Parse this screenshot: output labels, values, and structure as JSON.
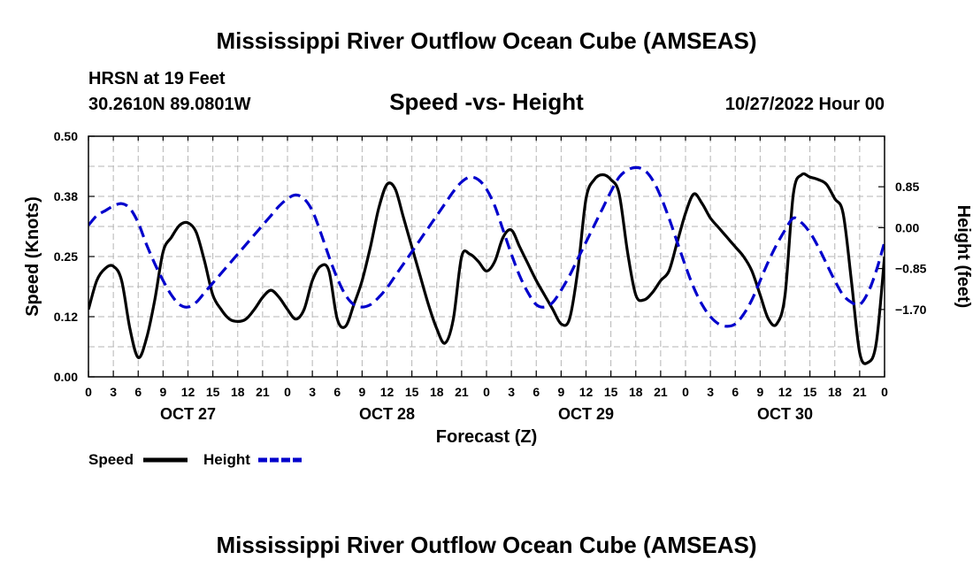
{
  "chart_data": {
    "type": "line",
    "title": "Mississippi River Outflow Ocean Cube (AMSEAS)",
    "station": "HRSN at 19 Feet",
    "location": "30.2610N  89.0801W",
    "subtitle": "Speed -vs- Height",
    "run": "10/27/2022 Hour 00",
    "footer_title": "Mississippi River Outflow Ocean Cube (AMSEAS)",
    "xlabel": "Forecast (Z)",
    "ylabel_left": "Speed (Knots)",
    "ylabel_right": "Height (feet)",
    "x_range_hours": [
      0,
      96
    ],
    "ylim_left": [
      0,
      0.5
    ],
    "ylim_right": [
      -3.1,
      1.9
    ],
    "left_ticks": [
      "0.00",
      "0.12",
      "0.25",
      "0.38",
      "0.50"
    ],
    "left_tick_values": [
      0,
      0.125,
      0.25,
      0.375,
      0.5
    ],
    "right_ticks": [
      "0.85",
      "0.00",
      "−0.85",
      "−1.70"
    ],
    "right_tick_values": [
      0.85,
      0.0,
      -0.85,
      -1.7
    ],
    "x_ticks": [
      "0",
      "3",
      "6",
      "9",
      "12",
      "15",
      "18",
      "21",
      "0",
      "3",
      "6",
      "9",
      "12",
      "15",
      "18",
      "21",
      "0",
      "3",
      "6",
      "9",
      "12",
      "15",
      "18",
      "21",
      "0",
      "3",
      "6",
      "9",
      "12",
      "15",
      "18",
      "21",
      "0"
    ],
    "day_labels": [
      "OCT 27",
      "OCT 28",
      "OCT 29",
      "OCT 30"
    ],
    "grid": true,
    "legend": "bottom-left",
    "series": [
      {
        "name": "Speed",
        "color": "#000000",
        "dash": "solid",
        "axis": "left",
        "x": [
          0,
          1,
          2,
          3,
          4,
          5,
          6,
          7,
          8,
          9,
          10,
          11,
          12,
          13,
          14,
          15,
          16,
          17,
          18,
          19,
          20,
          21,
          22,
          23,
          24,
          25,
          26,
          27,
          28,
          29,
          30,
          31,
          32,
          33,
          34,
          35,
          36,
          37,
          38,
          39,
          40,
          41,
          42,
          43,
          44,
          45,
          46,
          47,
          48,
          49,
          50,
          51,
          52,
          53,
          54,
          55,
          56,
          57,
          58,
          59,
          60,
          61,
          62,
          63,
          64,
          65,
          66,
          67,
          68,
          69,
          70,
          71,
          72,
          73,
          74,
          75,
          76,
          77,
          78,
          79,
          80,
          81,
          82,
          83,
          84,
          85,
          86,
          87,
          88,
          89,
          90,
          91,
          92,
          93,
          94,
          95,
          96
        ],
        "values": [
          0.14,
          0.2,
          0.225,
          0.23,
          0.2,
          0.1,
          0.04,
          0.08,
          0.16,
          0.26,
          0.29,
          0.315,
          0.32,
          0.3,
          0.24,
          0.17,
          0.14,
          0.12,
          0.115,
          0.12,
          0.14,
          0.165,
          0.18,
          0.165,
          0.14,
          0.12,
          0.14,
          0.2,
          0.23,
          0.22,
          0.12,
          0.105,
          0.15,
          0.2,
          0.27,
          0.35,
          0.4,
          0.39,
          0.33,
          0.27,
          0.21,
          0.15,
          0.1,
          0.07,
          0.12,
          0.25,
          0.255,
          0.24,
          0.22,
          0.24,
          0.29,
          0.305,
          0.27,
          0.235,
          0.2,
          0.17,
          0.14,
          0.11,
          0.12,
          0.22,
          0.37,
          0.41,
          0.42,
          0.41,
          0.38,
          0.26,
          0.17,
          0.16,
          0.175,
          0.2,
          0.22,
          0.28,
          0.34,
          0.38,
          0.36,
          0.33,
          0.31,
          0.29,
          0.27,
          0.25,
          0.22,
          0.17,
          0.12,
          0.11,
          0.17,
          0.38,
          0.42,
          0.415,
          0.41,
          0.4,
          0.37,
          0.34,
          0.2,
          0.05,
          0.03,
          0.07,
          0.25
        ]
      },
      {
        "name": "Height",
        "color": "#0000cc",
        "dash": "dashed",
        "axis": "right",
        "x": [
          0,
          1,
          2,
          3,
          4,
          5,
          6,
          7,
          8,
          9,
          10,
          11,
          12,
          13,
          14,
          15,
          16,
          17,
          18,
          19,
          20,
          21,
          22,
          23,
          24,
          25,
          26,
          27,
          28,
          29,
          30,
          31,
          32,
          33,
          34,
          35,
          36,
          37,
          38,
          39,
          40,
          41,
          42,
          43,
          44,
          45,
          46,
          47,
          48,
          49,
          50,
          51,
          52,
          53,
          54,
          55,
          56,
          57,
          58,
          59,
          60,
          61,
          62,
          63,
          64,
          65,
          66,
          67,
          68,
          69,
          70,
          71,
          72,
          73,
          74,
          75,
          76,
          77,
          78,
          79,
          80,
          81,
          82,
          83,
          84,
          85,
          86,
          87,
          88,
          89,
          90,
          91,
          92,
          93,
          94,
          95,
          96
        ],
        "values": [
          0.05,
          0.25,
          0.35,
          0.45,
          0.5,
          0.4,
          0.1,
          -0.35,
          -0.75,
          -1.1,
          -1.4,
          -1.6,
          -1.65,
          -1.55,
          -1.35,
          -1.15,
          -0.95,
          -0.75,
          -0.55,
          -0.35,
          -0.15,
          0.05,
          0.25,
          0.45,
          0.6,
          0.68,
          0.6,
          0.35,
          -0.1,
          -0.6,
          -1.05,
          -1.4,
          -1.6,
          -1.65,
          -1.6,
          -1.45,
          -1.25,
          -1.0,
          -0.75,
          -0.5,
          -0.25,
          0.0,
          0.25,
          0.5,
          0.75,
          0.95,
          1.05,
          1.0,
          0.8,
          0.45,
          -0.05,
          -0.55,
          -1.0,
          -1.35,
          -1.6,
          -1.65,
          -1.55,
          -1.3,
          -1.0,
          -0.65,
          -0.3,
          0.05,
          0.4,
          0.75,
          1.05,
          1.2,
          1.25,
          1.2,
          1.0,
          0.65,
          0.2,
          -0.3,
          -0.8,
          -1.25,
          -1.6,
          -1.85,
          -2.0,
          -2.05,
          -2.0,
          -1.8,
          -1.5,
          -1.1,
          -0.7,
          -0.35,
          -0.05,
          0.2,
          0.1,
          -0.1,
          -0.4,
          -0.75,
          -1.1,
          -1.4,
          -1.55,
          -1.6,
          -1.35,
          -0.9,
          -0.3
        ]
      }
    ]
  }
}
